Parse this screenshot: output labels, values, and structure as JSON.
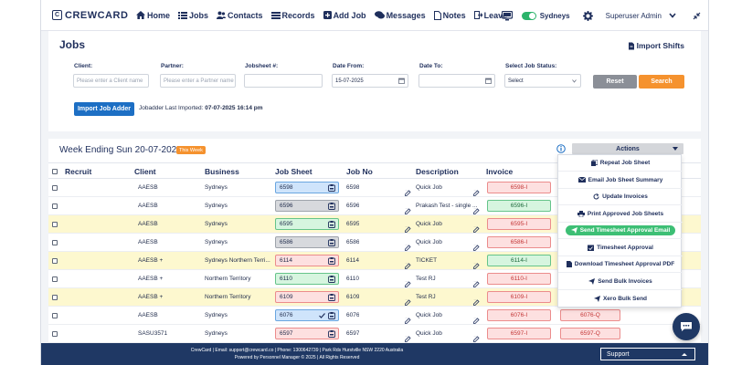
{
  "brand": {
    "name": "CREWCARD"
  },
  "nav": {
    "home": "Home",
    "jobs": "Jobs",
    "contacts": "Contacts",
    "records": "Records",
    "add_job": "Add Job",
    "messages": "Messages",
    "notes": "Notes",
    "leave": "Leave"
  },
  "header_right": {
    "location": "Sydneys",
    "user": "Superuser Admin"
  },
  "page": {
    "title": "Jobs",
    "import_shifts": "Import Shifts"
  },
  "filters": {
    "client_label": "Client:",
    "client_placeholder": "Please enter a Client name",
    "partner_label": "Partner:",
    "partner_placeholder": "Please enter a Partner name",
    "jobsheet_label": "Jobsheet #:",
    "date_from_label": "Date From:",
    "date_from_value": "15-07-2025",
    "date_to_label": "Date To:",
    "status_label": "Select Job Status:",
    "status_value": "Select",
    "reset": "Reset",
    "search": "Search",
    "import_job_adder": "Import Job Adder",
    "last_imported_label": "Jobadder Last Imported:",
    "last_imported_value": "07-07-2025 16:14 pm"
  },
  "week": {
    "title": "Week Ending Sun 20-07-2025",
    "badge": "This Week"
  },
  "actions": {
    "label": "Actions",
    "items": [
      "Repeat Job Sheet",
      "Email Job Sheet Summary",
      "Update Invoices",
      "Print Approved Job Sheets",
      "Send Timesheet Approval Email",
      "Timesheet Approval",
      "Download Timesheet Approval PDF",
      "Send Bulk Invoices",
      "Xero Bulk Send"
    ]
  },
  "table": {
    "columns": [
      "Recruit",
      "Client",
      "Business",
      "Job Sheet",
      "Job No",
      "Description",
      "Invoice"
    ],
    "rows": [
      {
        "client": "AAESB",
        "business": "Sydneys",
        "job_sheet": "6598",
        "job_no": "6598",
        "description": "Quick Job",
        "invoice": "6598-I",
        "quote": ""
      },
      {
        "client": "AAESB",
        "business": "Sydneys",
        "job_sheet": "6596",
        "job_no": "6596",
        "description": "Prakash Test - single ...",
        "invoice": "6596-I",
        "quote": ""
      },
      {
        "client": "AAESB",
        "business": "Sydneys",
        "job_sheet": "6595",
        "job_no": "6595",
        "description": "Quick Job",
        "invoice": "6595-I",
        "quote": ""
      },
      {
        "client": "AAESB",
        "business": "Sydneys",
        "job_sheet": "6586",
        "job_no": "6586",
        "description": "Quick Job",
        "invoice": "6586-I",
        "quote": ""
      },
      {
        "client": "AAESB +",
        "business": "Sydneys Northern Terri...",
        "job_sheet": "6114",
        "job_no": "6114",
        "description": "TICKET",
        "invoice": "6114-I",
        "quote": ""
      },
      {
        "client": "AAESB +",
        "business": "Northern Territory",
        "job_sheet": "6110",
        "job_no": "6110",
        "description": "Test RJ",
        "invoice": "6110-I",
        "quote": ""
      },
      {
        "client": "AAESB +",
        "business": "Northern Territory",
        "job_sheet": "6109",
        "job_no": "6109",
        "description": "Test RJ",
        "invoice": "6109-I",
        "quote": ""
      },
      {
        "client": "AAESB",
        "business": "Sydneys",
        "job_sheet": "6076",
        "job_no": "6076",
        "description": "Quick Job",
        "invoice": "6076-I",
        "quote": "6076-Q"
      },
      {
        "client": "SASU3571",
        "business": "Sydneys",
        "job_sheet": "6597",
        "job_no": "6597",
        "description": "Quick Job",
        "invoice": "6597-I",
        "quote": "6597-Q"
      }
    ]
  },
  "colors": {
    "navy": "#1f3864",
    "accent_orange": "#f5922e",
    "primary_blue": "#1d6fc4",
    "success_green": "#3dbf75"
  },
  "footer": {
    "line1": "CrewCard | Email: support@crewcard.co | Phone: 1300642739 | Park Rds Hurstville NSW 2220 Australia",
    "line2": "Powered by Personnel Manager © 2025 | All Rights Reserved",
    "support": "Support"
  }
}
